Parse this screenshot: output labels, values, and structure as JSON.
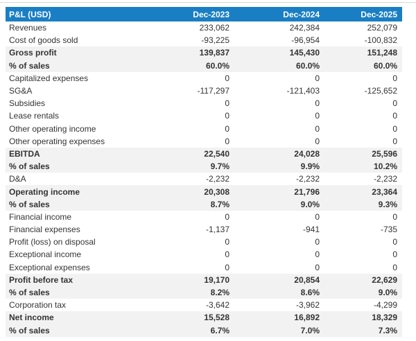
{
  "chart_data": {
    "type": "table",
    "title": "P&L (USD)",
    "columns": [
      "Dec-2023",
      "Dec-2024",
      "Dec-2025"
    ],
    "rows": [
      {
        "label": "Revenues",
        "values": [
          "233,062",
          "242,384",
          "252,079"
        ],
        "emphasis": false
      },
      {
        "label": "Cost of goods sold",
        "values": [
          "-93,225",
          "-96,954",
          "-100,832"
        ],
        "emphasis": false
      },
      {
        "label": "Gross profit",
        "values": [
          "139,837",
          "145,430",
          "151,248"
        ],
        "emphasis": true
      },
      {
        "label": "% of sales",
        "values": [
          "60.0%",
          "60.0%",
          "60.0%"
        ],
        "emphasis": true
      },
      {
        "label": "Capitalized expenses",
        "values": [
          "0",
          "0",
          "0"
        ],
        "emphasis": false
      },
      {
        "label": "SG&A",
        "values": [
          "-117,297",
          "-121,403",
          "-125,652"
        ],
        "emphasis": false
      },
      {
        "label": "Subsidies",
        "values": [
          "0",
          "0",
          "0"
        ],
        "emphasis": false
      },
      {
        "label": "Lease rentals",
        "values": [
          "0",
          "0",
          "0"
        ],
        "emphasis": false
      },
      {
        "label": "Other operating income",
        "values": [
          "0",
          "0",
          "0"
        ],
        "emphasis": false
      },
      {
        "label": "Other operating expenses",
        "values": [
          "0",
          "0",
          "0"
        ],
        "emphasis": false
      },
      {
        "label": "EBITDA",
        "values": [
          "22,540",
          "24,028",
          "25,596"
        ],
        "emphasis": true
      },
      {
        "label": "% of sales",
        "values": [
          "9.7%",
          "9.9%",
          "10.2%"
        ],
        "emphasis": true
      },
      {
        "label": "D&A",
        "values": [
          "-2,232",
          "-2,232",
          "-2,232"
        ],
        "emphasis": false
      },
      {
        "label": "Operating income",
        "values": [
          "20,308",
          "21,796",
          "23,364"
        ],
        "emphasis": true
      },
      {
        "label": "% of sales",
        "values": [
          "8.7%",
          "9.0%",
          "9.3%"
        ],
        "emphasis": true
      },
      {
        "label": "Financial income",
        "values": [
          "0",
          "0",
          "0"
        ],
        "emphasis": false
      },
      {
        "label": "Financial expenses",
        "values": [
          "-1,137",
          "-941",
          "-735"
        ],
        "emphasis": false
      },
      {
        "label": "Profit (loss) on disposal",
        "values": [
          "0",
          "0",
          "0"
        ],
        "emphasis": false
      },
      {
        "label": "Exceptional income",
        "values": [
          "0",
          "0",
          "0"
        ],
        "emphasis": false
      },
      {
        "label": "Exceptional expenses",
        "values": [
          "0",
          "0",
          "0"
        ],
        "emphasis": false
      },
      {
        "label": "Profit before tax",
        "values": [
          "19,170",
          "20,854",
          "22,629"
        ],
        "emphasis": true
      },
      {
        "label": "% of sales",
        "values": [
          "8.2%",
          "8.6%",
          "9.0%"
        ],
        "emphasis": true
      },
      {
        "label": "Corporation tax",
        "values": [
          "-3,642",
          "-3,962",
          "-4,299"
        ],
        "emphasis": false
      },
      {
        "label": "Net income",
        "values": [
          "15,528",
          "16,892",
          "18,329"
        ],
        "emphasis": true
      },
      {
        "label": "% of sales",
        "values": [
          "6.7%",
          "7.0%",
          "7.3%"
        ],
        "emphasis": true
      }
    ],
    "colors": {
      "header_bg": "#1a7ec4",
      "header_text": "#ffffff",
      "band_bg": "#f2f2f2",
      "text": "#333333",
      "top_rule": "#d9d9d9"
    },
    "layout_hints": {
      "grid": "off",
      "emphasis_rows_have_gray_band": true,
      "numeric_alignment": "right"
    }
  }
}
